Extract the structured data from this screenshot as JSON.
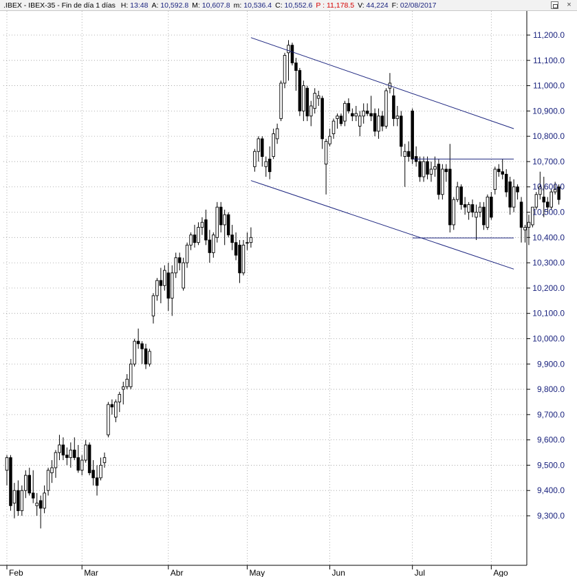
{
  "header": {
    "symbol": ".IBEX - IBEX-35 - Fin de día 1 días",
    "fields": [
      {
        "label": "H:",
        "value": "13:48",
        "color": "#1a237e"
      },
      {
        "label": "A:",
        "value": "10,592.8",
        "color": "#1a237e"
      },
      {
        "label": "M:",
        "value": "10,607.8",
        "color": "#1a237e"
      },
      {
        "label": "m:",
        "value": "10,536.4",
        "color": "#1a237e"
      },
      {
        "label": "C:",
        "value": "10,552.6",
        "color": "#1a237e"
      },
      {
        "label": "P :",
        "value": "11,178.5",
        "color": "#d50000"
      },
      {
        "label": "V:",
        "value": "44,224",
        "color": "#1a237e"
      },
      {
        "label": "F:",
        "value": "02/08/2017",
        "color": "#1a237e"
      }
    ]
  },
  "window_buttons": [
    "restore-icon",
    "close-icon"
  ],
  "chart_data": {
    "type": "candlestick",
    "title": "",
    "xlabel": "",
    "ylabel": "",
    "ylim": [
      9200,
      11300
    ],
    "y_ticks": [
      "11,200.0",
      "11,100.0",
      "11,000.0",
      "10,900.0",
      "10,800.0",
      "10,700.0",
      "10,600.0",
      "10,500.0",
      "10,400.0",
      "10,300.0",
      "10,200.0",
      "10,100.0",
      "10,000.0",
      "9,900.0",
      "9,800.0",
      "9,700.0",
      "9,600.0",
      "9,500.0",
      "9,400.0",
      "9,300.0"
    ],
    "x_ticks": [
      {
        "label": "Feb",
        "date": "2017-02-01"
      },
      {
        "label": "Mar",
        "date": "2017-03-01"
      },
      {
        "label": "Abr",
        "date": "2017-04-03"
      },
      {
        "label": "May",
        "date": "2017-05-02"
      },
      {
        "label": "Jun",
        "date": "2017-06-01"
      },
      {
        "label": "Jul",
        "date": "2017-07-03"
      },
      {
        "label": "Ago",
        "date": "2017-08-01"
      }
    ],
    "grid": true,
    "colors": {
      "up": "#ffffff",
      "down": "#000000",
      "trendline": "#1a237e",
      "grid": "#999999",
      "axis": "#000000"
    },
    "candles": [
      {
        "o": 9480,
        "h": 9540,
        "l": 9420,
        "c": 9530
      },
      {
        "o": 9530,
        "h": 9540,
        "l": 9320,
        "c": 9340
      },
      {
        "o": 9350,
        "h": 9430,
        "l": 9290,
        "c": 9400
      },
      {
        "o": 9400,
        "h": 9440,
        "l": 9300,
        "c": 9320
      },
      {
        "o": 9320,
        "h": 9420,
        "l": 9300,
        "c": 9400
      },
      {
        "o": 9400,
        "h": 9480,
        "l": 9370,
        "c": 9460
      },
      {
        "o": 9460,
        "h": 9490,
        "l": 9380,
        "c": 9390
      },
      {
        "o": 9390,
        "h": 9480,
        "l": 9350,
        "c": 9370
      },
      {
        "o": 9340,
        "h": 9390,
        "l": 9300,
        "c": 9350
      },
      {
        "o": 9360,
        "h": 9380,
        "l": 9250,
        "c": 9330
      },
      {
        "o": 9330,
        "h": 9420,
        "l": 9310,
        "c": 9390
      },
      {
        "o": 9400,
        "h": 9490,
        "l": 9380,
        "c": 9480
      },
      {
        "o": 9470,
        "h": 9520,
        "l": 9430,
        "c": 9490
      },
      {
        "o": 9490,
        "h": 9560,
        "l": 9450,
        "c": 9550
      },
      {
        "o": 9550,
        "h": 9620,
        "l": 9520,
        "c": 9580
      },
      {
        "o": 9580,
        "h": 9610,
        "l": 9520,
        "c": 9540
      },
      {
        "o": 9540,
        "h": 9570,
        "l": 9500,
        "c": 9530
      },
      {
        "o": 9530,
        "h": 9590,
        "l": 9490,
        "c": 9560
      },
      {
        "o": 9560,
        "h": 9610,
        "l": 9520,
        "c": 9530
      },
      {
        "o": 9530,
        "h": 9580,
        "l": 9470,
        "c": 9480
      },
      {
        "o": 9480,
        "h": 9540,
        "l": 9460,
        "c": 9520
      },
      {
        "o": 9520,
        "h": 9600,
        "l": 9510,
        "c": 9580
      },
      {
        "o": 9580,
        "h": 9590,
        "l": 9460,
        "c": 9470
      },
      {
        "o": 9480,
        "h": 9520,
        "l": 9420,
        "c": 9450
      },
      {
        "o": 9450,
        "h": 9500,
        "l": 9380,
        "c": 9420
      },
      {
        "o": 9450,
        "h": 9530,
        "l": 9440,
        "c": 9500
      },
      {
        "o": 9510,
        "h": 9550,
        "l": 9490,
        "c": 9530
      },
      {
        "o": 9620,
        "h": 9750,
        "l": 9610,
        "c": 9740
      },
      {
        "o": 9740,
        "h": 9760,
        "l": 9700,
        "c": 9730
      },
      {
        "o": 9690,
        "h": 9760,
        "l": 9670,
        "c": 9750
      },
      {
        "o": 9750,
        "h": 9790,
        "l": 9710,
        "c": 9780
      },
      {
        "o": 9800,
        "h": 9830,
        "l": 9740,
        "c": 9810
      },
      {
        "o": 9810,
        "h": 9860,
        "l": 9800,
        "c": 9840
      },
      {
        "o": 9810,
        "h": 9920,
        "l": 9800,
        "c": 9900
      },
      {
        "o": 9900,
        "h": 10000,
        "l": 9890,
        "c": 9990
      },
      {
        "o": 9990,
        "h": 10040,
        "l": 9960,
        "c": 9980
      },
      {
        "o": 9980,
        "h": 9990,
        "l": 9900,
        "c": 9960
      },
      {
        "o": 9960,
        "h": 9980,
        "l": 9880,
        "c": 9900
      },
      {
        "o": 9900,
        "h": 9960,
        "l": 9890,
        "c": 9950
      },
      {
        "o": 10090,
        "h": 10180,
        "l": 10060,
        "c": 10170
      },
      {
        "o": 10170,
        "h": 10240,
        "l": 10150,
        "c": 10230
      },
      {
        "o": 10230,
        "h": 10280,
        "l": 10140,
        "c": 10210
      },
      {
        "o": 10210,
        "h": 10290,
        "l": 10190,
        "c": 10270
      },
      {
        "o": 10260,
        "h": 10300,
        "l": 10110,
        "c": 10160
      },
      {
        "o": 10160,
        "h": 10290,
        "l": 10090,
        "c": 10260
      },
      {
        "o": 10260,
        "h": 10340,
        "l": 10240,
        "c": 10320
      },
      {
        "o": 10320,
        "h": 10340,
        "l": 10270,
        "c": 10300
      },
      {
        "o": 10200,
        "h": 10320,
        "l": 10190,
        "c": 10300
      },
      {
        "o": 10300,
        "h": 10380,
        "l": 10280,
        "c": 10370
      },
      {
        "o": 10370,
        "h": 10420,
        "l": 10350,
        "c": 10410
      },
      {
        "o": 10410,
        "h": 10450,
        "l": 10360,
        "c": 10380
      },
      {
        "o": 10380,
        "h": 10460,
        "l": 10370,
        "c": 10440
      },
      {
        "o": 10440,
        "h": 10480,
        "l": 10410,
        "c": 10460
      },
      {
        "o": 10470,
        "h": 10510,
        "l": 10370,
        "c": 10390
      },
      {
        "o": 10390,
        "h": 10430,
        "l": 10300,
        "c": 10340
      },
      {
        "o": 10340,
        "h": 10420,
        "l": 10320,
        "c": 10410
      },
      {
        "o": 10400,
        "h": 10540,
        "l": 10380,
        "c": 10520
      },
      {
        "o": 10520,
        "h": 10540,
        "l": 10420,
        "c": 10450
      },
      {
        "o": 10450,
        "h": 10510,
        "l": 10370,
        "c": 10490
      },
      {
        "o": 10490,
        "h": 10500,
        "l": 10400,
        "c": 10410
      },
      {
        "o": 10410,
        "h": 10450,
        "l": 10350,
        "c": 10380
      },
      {
        "o": 10380,
        "h": 10420,
        "l": 10310,
        "c": 10330
      },
      {
        "o": 10370,
        "h": 10390,
        "l": 10220,
        "c": 10260
      },
      {
        "o": 10260,
        "h": 10390,
        "l": 10250,
        "c": 10370
      },
      {
        "o": 10380,
        "h": 10420,
        "l": 10350,
        "c": 10380
      },
      {
        "o": 10380,
        "h": 10440,
        "l": 10360,
        "c": 10400
      },
      {
        "o": 10680,
        "h": 10750,
        "l": 10660,
        "c": 10740
      },
      {
        "o": 10740,
        "h": 10800,
        "l": 10700,
        "c": 10790
      },
      {
        "o": 10790,
        "h": 10800,
        "l": 10680,
        "c": 10720
      },
      {
        "o": 10680,
        "h": 10720,
        "l": 10640,
        "c": 10700
      },
      {
        "o": 10710,
        "h": 10760,
        "l": 10630,
        "c": 10660
      },
      {
        "o": 10720,
        "h": 10830,
        "l": 10710,
        "c": 10810
      },
      {
        "o": 10790,
        "h": 10850,
        "l": 10770,
        "c": 10830
      },
      {
        "o": 10870,
        "h": 11020,
        "l": 10860,
        "c": 11010
      },
      {
        "o": 11010,
        "h": 11130,
        "l": 10990,
        "c": 11120
      },
      {
        "o": 11130,
        "h": 11180,
        "l": 11020,
        "c": 11160
      },
      {
        "o": 11160,
        "h": 11170,
        "l": 11080,
        "c": 11090
      },
      {
        "o": 11090,
        "h": 11110,
        "l": 10980,
        "c": 11060
      },
      {
        "o": 11060,
        "h": 11070,
        "l": 10880,
        "c": 10900
      },
      {
        "o": 10900,
        "h": 11020,
        "l": 10860,
        "c": 11000
      },
      {
        "o": 10990,
        "h": 11000,
        "l": 10860,
        "c": 10880
      },
      {
        "o": 10880,
        "h": 10940,
        "l": 10840,
        "c": 10920
      },
      {
        "o": 10910,
        "h": 10990,
        "l": 10890,
        "c": 10970
      },
      {
        "o": 10950,
        "h": 10980,
        "l": 10920,
        "c": 10960
      },
      {
        "o": 10950,
        "h": 10960,
        "l": 10750,
        "c": 10790
      },
      {
        "o": 10690,
        "h": 10790,
        "l": 10570,
        "c": 10780
      },
      {
        "o": 10770,
        "h": 10830,
        "l": 10760,
        "c": 10800
      },
      {
        "o": 10810,
        "h": 10870,
        "l": 10790,
        "c": 10860
      },
      {
        "o": 10870,
        "h": 10890,
        "l": 10830,
        "c": 10880
      },
      {
        "o": 10880,
        "h": 10890,
        "l": 10840,
        "c": 10850
      },
      {
        "o": 10860,
        "h": 10940,
        "l": 10840,
        "c": 10930
      },
      {
        "o": 10930,
        "h": 10950,
        "l": 10890,
        "c": 10900
      },
      {
        "o": 10890,
        "h": 10910,
        "l": 10860,
        "c": 10880
      },
      {
        "o": 10880,
        "h": 10920,
        "l": 10860,
        "c": 10890
      },
      {
        "o": 10840,
        "h": 10900,
        "l": 10800,
        "c": 10880
      },
      {
        "o": 10880,
        "h": 10930,
        "l": 10850,
        "c": 10900
      },
      {
        "o": 10900,
        "h": 10930,
        "l": 10880,
        "c": 10890
      },
      {
        "o": 10890,
        "h": 10960,
        "l": 10860,
        "c": 10880
      },
      {
        "o": 10890,
        "h": 10910,
        "l": 10800,
        "c": 10820
      },
      {
        "o": 10820,
        "h": 10910,
        "l": 10790,
        "c": 10880
      },
      {
        "o": 10880,
        "h": 10900,
        "l": 10820,
        "c": 10840
      },
      {
        "o": 10840,
        "h": 10990,
        "l": 10830,
        "c": 10980
      },
      {
        "o": 10990,
        "h": 11050,
        "l": 10970,
        "c": 11010
      },
      {
        "o": 10960,
        "h": 10990,
        "l": 10840,
        "c": 10870
      },
      {
        "o": 10870,
        "h": 10920,
        "l": 10840,
        "c": 10880
      },
      {
        "o": 10880,
        "h": 10900,
        "l": 10720,
        "c": 10760
      },
      {
        "o": 10720,
        "h": 10770,
        "l": 10600,
        "c": 10740
      },
      {
        "o": 10740,
        "h": 10780,
        "l": 10700,
        "c": 10720
      },
      {
        "o": 10900,
        "h": 10910,
        "l": 10690,
        "c": 10710
      },
      {
        "o": 10720,
        "h": 10760,
        "l": 10680,
        "c": 10700
      },
      {
        "o": 10700,
        "h": 10720,
        "l": 10620,
        "c": 10640
      },
      {
        "o": 10640,
        "h": 10720,
        "l": 10620,
        "c": 10700
      },
      {
        "o": 10700,
        "h": 10720,
        "l": 10630,
        "c": 10650
      },
      {
        "o": 10650,
        "h": 10700,
        "l": 10620,
        "c": 10670
      },
      {
        "o": 10670,
        "h": 10720,
        "l": 10640,
        "c": 10680
      },
      {
        "o": 10690,
        "h": 10710,
        "l": 10550,
        "c": 10570
      },
      {
        "o": 10570,
        "h": 10690,
        "l": 10550,
        "c": 10670
      },
      {
        "o": 10670,
        "h": 10690,
        "l": 10620,
        "c": 10660
      },
      {
        "o": 10670,
        "h": 10770,
        "l": 10420,
        "c": 10450
      },
      {
        "o": 10450,
        "h": 10560,
        "l": 10430,
        "c": 10550
      },
      {
        "o": 10550,
        "h": 10620,
        "l": 10540,
        "c": 10600
      },
      {
        "o": 10600,
        "h": 10610,
        "l": 10510,
        "c": 10530
      },
      {
        "o": 10530,
        "h": 10560,
        "l": 10490,
        "c": 10520
      },
      {
        "o": 10500,
        "h": 10540,
        "l": 10470,
        "c": 10530
      },
      {
        "o": 10530,
        "h": 10550,
        "l": 10480,
        "c": 10500
      },
      {
        "o": 10480,
        "h": 10530,
        "l": 10390,
        "c": 10500
      },
      {
        "o": 10500,
        "h": 10540,
        "l": 10480,
        "c": 10520
      },
      {
        "o": 10520,
        "h": 10540,
        "l": 10430,
        "c": 10450
      },
      {
        "o": 10440,
        "h": 10570,
        "l": 10430,
        "c": 10560
      },
      {
        "o": 10560,
        "h": 10580,
        "l": 10470,
        "c": 10480
      },
      {
        "o": 10590,
        "h": 10680,
        "l": 10570,
        "c": 10670
      },
      {
        "o": 10670,
        "h": 10690,
        "l": 10640,
        "c": 10660
      },
      {
        "o": 10660,
        "h": 10710,
        "l": 10630,
        "c": 10650
      },
      {
        "o": 10650,
        "h": 10670,
        "l": 10560,
        "c": 10580
      },
      {
        "o": 10620,
        "h": 10640,
        "l": 10490,
        "c": 10520
      },
      {
        "o": 10520,
        "h": 10630,
        "l": 10500,
        "c": 10600
      },
      {
        "o": 10600,
        "h": 10610,
        "l": 10550,
        "c": 10580
      },
      {
        "o": 10540,
        "h": 10560,
        "l": 10380,
        "c": 10440
      },
      {
        "o": 10430,
        "h": 10450,
        "l": 10380,
        "c": 10440
      },
      {
        "o": 10440,
        "h": 10490,
        "l": 10370,
        "c": 10460
      },
      {
        "o": 10450,
        "h": 10520,
        "l": 10440,
        "c": 10520
      },
      {
        "o": 10520,
        "h": 10580,
        "l": 10510,
        "c": 10570
      },
      {
        "o": 10570,
        "h": 10660,
        "l": 10550,
        "c": 10600
      },
      {
        "o": 10560,
        "h": 10640,
        "l": 10480,
        "c": 10540
      },
      {
        "o": 10540,
        "h": 10560,
        "l": 10500,
        "c": 10520
      },
      {
        "o": 10520,
        "h": 10590,
        "l": 10510,
        "c": 10580
      },
      {
        "o": 10580,
        "h": 10620,
        "l": 10570,
        "c": 10590
      },
      {
        "o": 10600,
        "h": 10610,
        "l": 10530,
        "c": 10550
      }
    ],
    "trendlines": [
      {
        "name": "upper-channel",
        "x": [
          "2017-05-03",
          "2017-08-09"
        ],
        "y": [
          11190,
          10830
        ]
      },
      {
        "name": "lower-channel",
        "x": [
          "2017-05-03",
          "2017-08-09"
        ],
        "y": [
          10625,
          10275
        ]
      },
      {
        "name": "resistance",
        "x": [
          "2017-07-03",
          "2017-08-09"
        ],
        "y": [
          10710,
          10710
        ]
      },
      {
        "name": "support",
        "x": [
          "2017-07-03",
          "2017-08-09"
        ],
        "y": [
          10398,
          10398
        ]
      }
    ]
  }
}
